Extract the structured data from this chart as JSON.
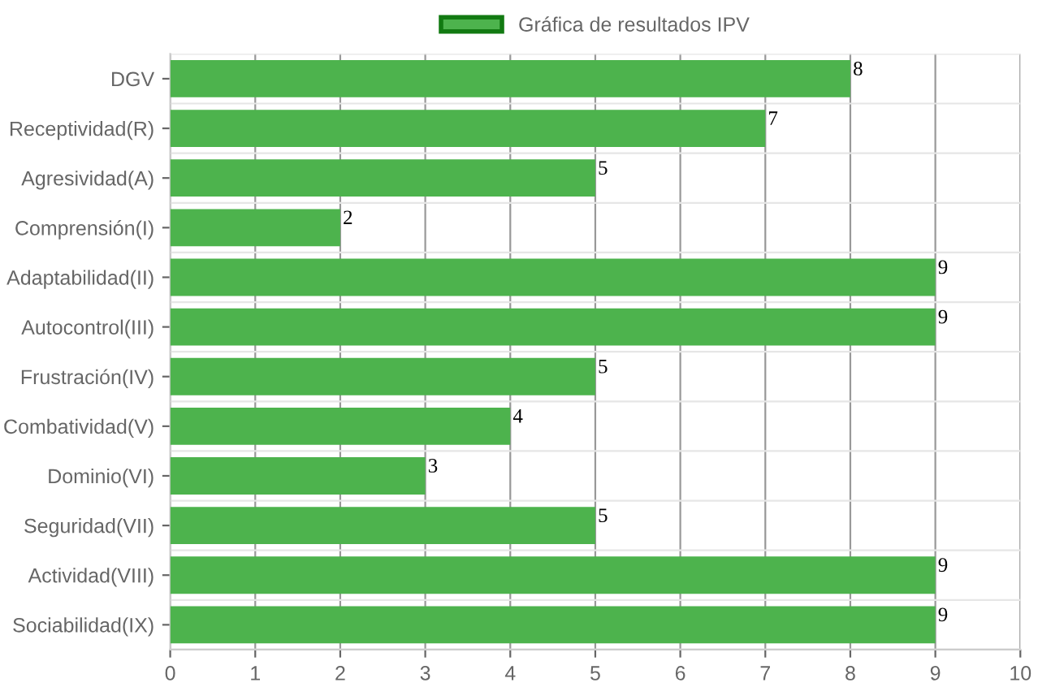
{
  "chart_data": {
    "type": "bar",
    "orientation": "horizontal",
    "categories": [
      "DGV",
      "Receptividad(R)",
      "Agresividad(A)",
      "Comprensión(I)",
      "Adaptabilidad(II)",
      "Autocontrol(III)",
      "Frustración(IV)",
      "Combatividad(V)",
      "Dominio(VI)",
      "Seguridad(VII)",
      "Actividad(VIII)",
      "Sociabilidad(IX)"
    ],
    "series": [
      {
        "name": "Gráfica de resultados IPV",
        "color": "#4db34d",
        "values": [
          8,
          7,
          5,
          2,
          9,
          9,
          5,
          4,
          3,
          5,
          9,
          9
        ]
      }
    ],
    "xlim": [
      0,
      10
    ],
    "xticks": [
      0,
      1,
      2,
      3,
      4,
      5,
      6,
      7,
      8,
      9,
      10
    ],
    "grid": true,
    "legend": "top",
    "data_labels": true
  }
}
